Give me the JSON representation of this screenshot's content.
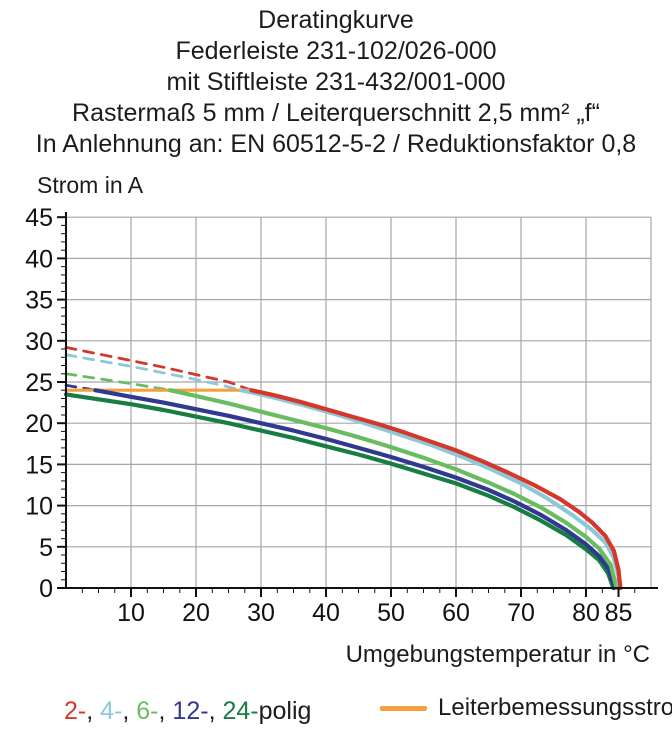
{
  "title_block": {
    "lines": [
      "Deratingkurve",
      "Federleiste 231-102/026-000",
      "mit Stiftleiste 231-432/001-000",
      "Rastermaß 5 mm / Leiterquerschnitt 2,5 mm² „f“",
      "In Anlehnung an: EN 60512-5-2 / Reduktionsfaktor 0,8"
    ]
  },
  "colors": {
    "pole2_red": "#d5382a",
    "pole4_cyan": "#8bc8d8",
    "pole6_green": "#68bd62",
    "pole12_navy": "#30398f",
    "pole24_darkgreen": "#177d44",
    "rated_orange": "#f2a13c",
    "grid_gray": "#a6a6a6",
    "axis_black": "#111111"
  },
  "chart_data": {
    "type": "line",
    "title": "Deratingkurve",
    "xlabel": "Umgebungstemperatur in °C",
    "ylabel": "Strom in A",
    "xlim": [
      0,
      90
    ],
    "ylim": [
      0,
      45
    ],
    "grid": true,
    "x_ticks_major": [
      10,
      20,
      30,
      40,
      50,
      60,
      70,
      80,
      85
    ],
    "y_ticks_major": [
      0,
      5,
      10,
      15,
      20,
      25,
      30,
      35,
      40,
      45
    ],
    "x_minor_step": 2.5,
    "y_minor_step": 1,
    "series": [
      {
        "id": "2-polig-dashed",
        "name": "2-polig (gestrichelt)",
        "color": "#d5382a",
        "style": "dashed",
        "width": 2.8,
        "points": [
          [
            0,
            29.2
          ],
          [
            5,
            28.4
          ],
          [
            10,
            27.6
          ],
          [
            15,
            26.8
          ],
          [
            20,
            25.9
          ],
          [
            25,
            25.0
          ],
          [
            28.5,
            24.0
          ]
        ]
      },
      {
        "id": "4-polig-dashed",
        "name": "4-polig (gestrichelt)",
        "color": "#8bc8d8",
        "style": "dashed",
        "width": 2.8,
        "points": [
          [
            0,
            28.3
          ],
          [
            5,
            27.6
          ],
          [
            10,
            26.9
          ],
          [
            15,
            26.1
          ],
          [
            20,
            25.3
          ],
          [
            24,
            24.6
          ],
          [
            27,
            24.0
          ]
        ]
      },
      {
        "id": "6-polig-dashed",
        "name": "6-polig (gestrichelt)",
        "color": "#68bd62",
        "style": "dashed",
        "width": 2.8,
        "points": [
          [
            0,
            26.0
          ],
          [
            5,
            25.4
          ],
          [
            10,
            24.8
          ],
          [
            16,
            24.0
          ]
        ]
      },
      {
        "id": "12-polig-dashed",
        "name": "12-polig (gestrichelt)",
        "color": "#30398f",
        "style": "dashed",
        "width": 2.8,
        "points": [
          [
            0,
            24.6
          ],
          [
            4.5,
            24.0
          ]
        ]
      },
      {
        "id": "leiterbemessungsstrom",
        "name": "Leiterbemessungsstrom",
        "color": "#f2a13c",
        "style": "solid",
        "width": 3.2,
        "points": [
          [
            0,
            24.0
          ],
          [
            28.5,
            24.0
          ]
        ]
      },
      {
        "id": "24-polig",
        "name": "24-polig",
        "color": "#177d44",
        "style": "solid",
        "width": 4.2,
        "points": [
          [
            0,
            23.5
          ],
          [
            5,
            22.9
          ],
          [
            10,
            22.3
          ],
          [
            15,
            21.6
          ],
          [
            20,
            20.8
          ],
          [
            25,
            20.0
          ],
          [
            30,
            19.1
          ],
          [
            35,
            18.2
          ],
          [
            40,
            17.2
          ],
          [
            45,
            16.2
          ],
          [
            50,
            15.1
          ],
          [
            55,
            13.9
          ],
          [
            60,
            12.7
          ],
          [
            65,
            11.2
          ],
          [
            69,
            9.8
          ],
          [
            73,
            8.2
          ],
          [
            77,
            6.4
          ],
          [
            80,
            4.7
          ],
          [
            82,
            3.4
          ],
          [
            83.4,
            1.8
          ],
          [
            84.2,
            0
          ]
        ]
      },
      {
        "id": "12-polig",
        "name": "12-polig",
        "color": "#30398f",
        "style": "solid",
        "width": 4.2,
        "points": [
          [
            4.5,
            24.0
          ],
          [
            10,
            23.2
          ],
          [
            15,
            22.5
          ],
          [
            20,
            21.7
          ],
          [
            25,
            20.9
          ],
          [
            30,
            20.0
          ],
          [
            35,
            19.1
          ],
          [
            40,
            18.1
          ],
          [
            45,
            17.0
          ],
          [
            50,
            15.9
          ],
          [
            55,
            14.7
          ],
          [
            60,
            13.4
          ],
          [
            65,
            11.9
          ],
          [
            69,
            10.5
          ],
          [
            73,
            8.9
          ],
          [
            77,
            7.0
          ],
          [
            80,
            5.3
          ],
          [
            82,
            3.9
          ],
          [
            83.5,
            2.3
          ],
          [
            84.4,
            0
          ]
        ]
      },
      {
        "id": "6-polig",
        "name": "6-polig",
        "color": "#68bd62",
        "style": "solid",
        "width": 4.2,
        "points": [
          [
            16,
            24.0
          ],
          [
            20,
            23.3
          ],
          [
            25,
            22.4
          ],
          [
            30,
            21.4
          ],
          [
            35,
            20.4
          ],
          [
            40,
            19.4
          ],
          [
            45,
            18.3
          ],
          [
            50,
            17.1
          ],
          [
            55,
            15.8
          ],
          [
            60,
            14.4
          ],
          [
            65,
            12.8
          ],
          [
            69,
            11.4
          ],
          [
            73,
            9.8
          ],
          [
            77,
            7.9
          ],
          [
            80,
            6.2
          ],
          [
            82,
            4.8
          ],
          [
            83.8,
            2.8
          ],
          [
            84.7,
            0
          ]
        ]
      },
      {
        "id": "4-polig",
        "name": "4-polig",
        "color": "#8bc8d8",
        "style": "solid",
        "width": 4.2,
        "points": [
          [
            27,
            24.0
          ],
          [
            31,
            23.3
          ],
          [
            36,
            22.3
          ],
          [
            41,
            21.2
          ],
          [
            46,
            20.0
          ],
          [
            51,
            18.7
          ],
          [
            56,
            17.4
          ],
          [
            61,
            15.9
          ],
          [
            66,
            14.2
          ],
          [
            70,
            12.7
          ],
          [
            74,
            10.9
          ],
          [
            78,
            8.8
          ],
          [
            81,
            7.0
          ],
          [
            83,
            5.5
          ],
          [
            84.2,
            3.8
          ],
          [
            85,
            1.5
          ],
          [
            85.1,
            0
          ]
        ]
      },
      {
        "id": "2-polig",
        "name": "2-polig",
        "color": "#d5382a",
        "style": "solid",
        "width": 4.2,
        "points": [
          [
            28.5,
            24.0
          ],
          [
            32,
            23.4
          ],
          [
            36,
            22.6
          ],
          [
            40,
            21.7
          ],
          [
            44,
            20.8
          ],
          [
            48,
            19.9
          ],
          [
            52,
            18.9
          ],
          [
            56,
            17.8
          ],
          [
            60,
            16.7
          ],
          [
            64,
            15.4
          ],
          [
            68,
            14.0
          ],
          [
            72,
            12.5
          ],
          [
            76,
            10.8
          ],
          [
            79,
            9.2
          ],
          [
            81,
            7.9
          ],
          [
            83,
            6.3
          ],
          [
            84.3,
            4.5
          ],
          [
            85,
            2.2
          ],
          [
            85.3,
            0
          ]
        ]
      }
    ]
  },
  "legend": {
    "pole_segments": [
      {
        "text": "2-",
        "color": "#d5382a"
      },
      {
        "text": ", "
      },
      {
        "text": "4-",
        "color": "#8bc8d8"
      },
      {
        "text": ", "
      },
      {
        "text": "6-",
        "color": "#68bd62"
      },
      {
        "text": ", "
      },
      {
        "text": "12-",
        "color": "#30398f"
      },
      {
        "text": ", "
      },
      {
        "text": "24-",
        "color": "#177d44"
      },
      {
        "text": "polig"
      }
    ],
    "rated_label": "Leiterbemessungsstrom"
  }
}
